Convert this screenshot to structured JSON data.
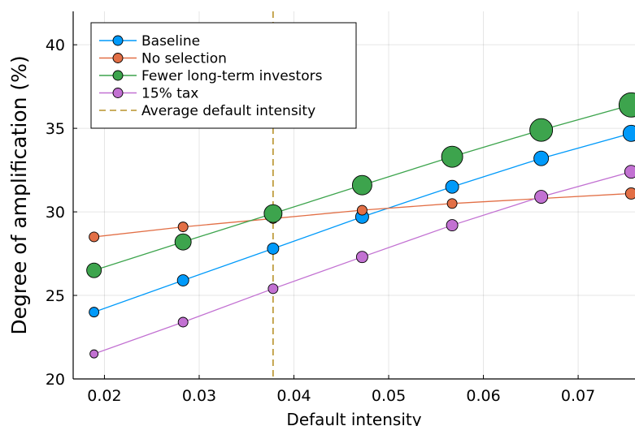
{
  "chart_data": {
    "type": "scatter",
    "title": "",
    "xlabel": "Default intensity",
    "ylabel": "Degree of amplification (%)",
    "xlim": [
      0.0167,
      0.076
    ],
    "ylim": [
      20,
      42
    ],
    "xticks": [
      "0.02",
      "0.03",
      "0.04",
      "0.05",
      "0.06",
      "0.07"
    ],
    "yticks": [
      "20",
      "25",
      "30",
      "35",
      "40"
    ],
    "grid": true,
    "legend_position": "top-left",
    "series": [
      {
        "name": "Baseline",
        "color": "#009AFA",
        "x": [
          0.0189,
          0.0283,
          0.0378,
          0.0472,
          0.0567,
          0.0661,
          0.0756
        ],
        "y": [
          24.0,
          25.9,
          27.8,
          29.7,
          31.5,
          33.2,
          34.7
        ],
        "marker_size": [
          6,
          7,
          7,
          8,
          8,
          9,
          10
        ]
      },
      {
        "name": "No selection",
        "color": "#E26F46",
        "x": [
          0.0189,
          0.0283,
          0.0378,
          0.0472,
          0.0567,
          0.0661,
          0.0756
        ],
        "y": [
          28.5,
          29.1,
          29.6,
          30.1,
          30.5,
          30.8,
          31.1
        ],
        "marker_size": [
          6,
          6,
          6,
          6,
          6,
          6,
          7
        ]
      },
      {
        "name": "Fewer long-term investors",
        "color": "#3DA44D",
        "x": [
          0.0189,
          0.0283,
          0.0378,
          0.0472,
          0.0567,
          0.0661,
          0.0756
        ],
        "y": [
          26.5,
          28.2,
          29.9,
          31.6,
          33.3,
          34.9,
          36.4
        ],
        "marker_size": [
          9,
          10,
          11,
          12,
          13,
          14,
          15
        ]
      },
      {
        "name": "15% tax",
        "color": "#C271D2",
        "x": [
          0.0189,
          0.0283,
          0.0378,
          0.0472,
          0.0567,
          0.0661,
          0.0756
        ],
        "y": [
          21.5,
          23.4,
          25.4,
          27.3,
          29.2,
          30.9,
          32.4
        ],
        "marker_size": [
          5,
          6,
          6,
          7,
          7,
          8,
          8
        ]
      }
    ],
    "reference_line": {
      "name": "Average default intensity",
      "x": 0.0378,
      "color": "#B8922A",
      "style": "dashed"
    }
  }
}
